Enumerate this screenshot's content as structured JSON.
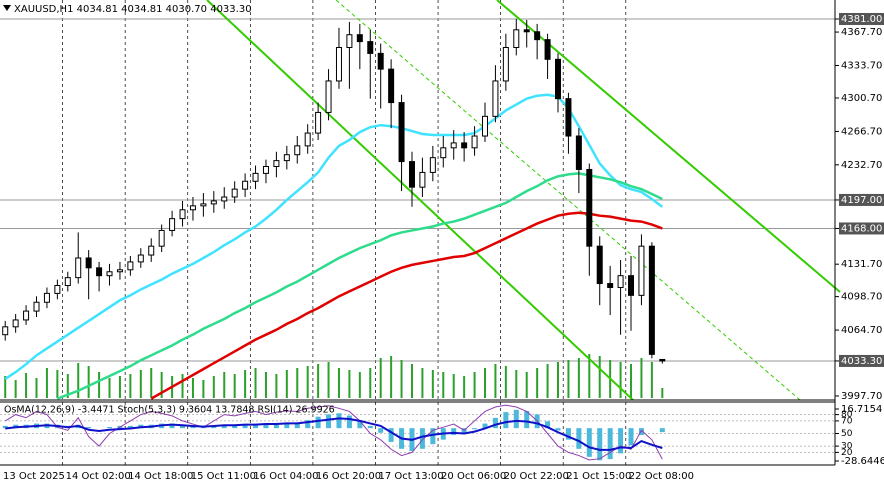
{
  "chart_data": [
    {
      "type": "candlestick",
      "title": "XAUUSD,H1  4034.81 4034.81 4030.70 4033.30",
      "categories": [
        "13 Oct 2025",
        null,
        null,
        null,
        null,
        null,
        "14 Oct 02:00",
        null,
        null,
        null,
        null,
        null,
        "14 Oct 18:00",
        null,
        null,
        null,
        null,
        null,
        "15 Oct 11:00",
        null,
        null,
        null,
        null,
        null,
        "16 Oct 04:00",
        null,
        null,
        null,
        null,
        null,
        "16 Oct 20:00",
        null,
        null,
        null,
        null,
        null,
        "17 Oct 13:00",
        null,
        null,
        null,
        null,
        null,
        "20 Oct 06:00",
        null,
        null,
        null,
        null,
        null,
        "20 Oct 22:00",
        null,
        null,
        null,
        null,
        null,
        "21 Oct 15:00",
        null,
        null,
        null,
        null,
        null,
        "22 Oct 08:00",
        null,
        null,
        null
      ],
      "open": [
        4060,
        4068,
        4075,
        4084,
        4093,
        4102,
        4110,
        4118,
        4138,
        4128,
        4120,
        4124,
        4126,
        4134,
        4141,
        4150,
        4166,
        4178,
        4187,
        4191,
        4193,
        4196,
        4200,
        4208,
        4216,
        4224,
        4231,
        4237,
        4243,
        4252,
        4265,
        4286,
        4318,
        4352,
        4365,
        4358,
        4346,
        4330,
        4296,
        4236,
        4210,
        4225,
        4240,
        4250,
        4255,
        4250,
        4262,
        4282,
        4318,
        4352,
        4370,
        4368,
        4360,
        4340,
        4300,
        4262,
        4228,
        4150,
        4112,
        4108,
        4120,
        4100,
        4150,
        4034.81
      ],
      "high": [
        4074,
        4081,
        4090,
        4099,
        4108,
        4116,
        4124,
        4164,
        4146,
        4134,
        4132,
        4134,
        4140,
        4148,
        4158,
        4172,
        4186,
        4196,
        4200,
        4204,
        4206,
        4210,
        4216,
        4224,
        4232,
        4238,
        4246,
        4252,
        4262,
        4274,
        4296,
        4330,
        4372,
        4378,
        4376,
        4370,
        4356,
        4340,
        4304,
        4246,
        4240,
        4252,
        4262,
        4268,
        4266,
        4272,
        4296,
        4334,
        4366,
        4381,
        4380,
        4376,
        4366,
        4346,
        4306,
        4270,
        4234,
        4160,
        4130,
        4136,
        4140,
        4162,
        4154,
        4034.81
      ],
      "low": [
        4054,
        4062,
        4070,
        4078,
        4087,
        4096,
        4104,
        4112,
        4096,
        4104,
        4110,
        4116,
        4120,
        4128,
        4134,
        4144,
        4160,
        4170,
        4176,
        4180,
        4184,
        4188,
        4194,
        4200,
        4208,
        4214,
        4220,
        4228,
        4234,
        4244,
        4258,
        4278,
        4310,
        4310,
        4330,
        4300,
        4290,
        4270,
        4206,
        4190,
        4200,
        4216,
        4230,
        4238,
        4236,
        4242,
        4256,
        4276,
        4308,
        4344,
        4352,
        4340,
        4320,
        4286,
        4244,
        4204,
        4120,
        4090,
        4080,
        4060,
        4064,
        4090,
        4036,
        4030.7
      ],
      "close": [
        4068,
        4075,
        4084,
        4093,
        4102,
        4110,
        4118,
        4138,
        4128,
        4120,
        4124,
        4126,
        4134,
        4141,
        4150,
        4166,
        4178,
        4187,
        4191,
        4193,
        4196,
        4200,
        4208,
        4216,
        4224,
        4231,
        4237,
        4243,
        4252,
        4265,
        4286,
        4318,
        4352,
        4365,
        4358,
        4346,
        4330,
        4296,
        4236,
        4210,
        4225,
        4240,
        4250,
        4255,
        4250,
        4262,
        4282,
        4318,
        4352,
        4370,
        4368,
        4360,
        4340,
        4300,
        4262,
        4228,
        4150,
        4112,
        4108,
        4120,
        4100,
        4150,
        4040,
        4033.3
      ],
      "candle_color": "#000000",
      "volume": [
        22,
        18,
        25,
        20,
        30,
        28,
        24,
        35,
        32,
        26,
        20,
        22,
        24,
        28,
        30,
        26,
        22,
        24,
        20,
        18,
        22,
        26,
        24,
        28,
        30,
        26,
        24,
        28,
        30,
        32,
        34,
        36,
        30,
        28,
        26,
        30,
        40,
        42,
        38,
        34,
        30,
        28,
        26,
        24,
        22,
        26,
        30,
        34,
        32,
        28,
        26,
        30,
        34,
        36,
        38,
        40,
        44,
        42,
        38,
        36,
        34,
        40,
        36,
        10
      ],
      "volume_color": "#2ca02c",
      "series": [
        {
          "color": "#3fe3ff",
          "values": [
            4015,
            4022,
            4030,
            4039,
            4046,
            4053,
            4060,
            4067,
            4074,
            4081,
            4088,
            4095,
            4100,
            4106,
            4111,
            4116,
            4122,
            4127,
            4132,
            4138,
            4144,
            4151,
            4157,
            4164,
            4170,
            4178,
            4187,
            4197,
            4206,
            4215,
            4225,
            4240,
            4252,
            4258,
            4266,
            4271,
            4273,
            4272,
            4270,
            4267,
            4264,
            4263,
            4263,
            4263,
            4263,
            4265,
            4272,
            4280,
            4288,
            4294,
            4300,
            4303,
            4304,
            4302,
            4290,
            4272,
            4253,
            4234,
            4222,
            4212,
            4208,
            4205,
            4198,
            4190
          ]
        },
        {
          "color": "#2fdc8c",
          "values": [
            null,
            null,
            null,
            null,
            null,
            3995,
            3999,
            4003,
            4008,
            4013,
            4018,
            4023,
            4028,
            4034,
            4039,
            4044,
            4049,
            4055,
            4060,
            4066,
            4071,
            4076,
            4082,
            4087,
            4093,
            4098,
            4103,
            4109,
            4114,
            4120,
            4126,
            4132,
            4138,
            4143,
            4148,
            4152,
            4156,
            4161,
            4164,
            4166,
            4168,
            4170,
            4173,
            4175,
            4178,
            4182,
            4186,
            4190,
            4194,
            4200,
            4206,
            4211,
            4217,
            4221,
            4223,
            4224,
            4222,
            4220,
            4218,
            4215,
            4211,
            4208,
            4203,
            4198
          ]
        },
        {
          "color": "#e00000",
          "values": [
            null,
            null,
            null,
            null,
            null,
            null,
            null,
            null,
            null,
            null,
            null,
            null,
            null,
            null,
            3995,
            4001,
            4007,
            4013,
            4019,
            4025,
            4031,
            4037,
            4043,
            4049,
            4055,
            4060,
            4065,
            4071,
            4076,
            4082,
            4087,
            4093,
            4099,
            4104,
            4109,
            4114,
            4119,
            4124,
            4128,
            4131,
            4133,
            4135,
            4137,
            4139,
            4140,
            4143,
            4148,
            4153,
            4158,
            4163,
            4168,
            4173,
            4177,
            4181,
            4183,
            4184,
            4183,
            4181,
            4180,
            4178,
            4176,
            4175,
            4172,
            4168
          ]
        }
      ],
      "ylim": [
        3993.6,
        4400.3
      ],
      "yticks": [
        {
          "value": 4381,
          "label": "4381.00"
        },
        {
          "value": 4367.7,
          "label": "4367.70"
        },
        {
          "value": 4333.7,
          "label": "4333.70"
        },
        {
          "value": 4300.7,
          "label": "4300.70"
        },
        {
          "value": 4266.7,
          "label": "4266.70"
        },
        {
          "value": 4232.7,
          "label": "4232.70"
        },
        {
          "value": 4197,
          "label": "4197.00"
        },
        {
          "value": 4168,
          "label": "4168.00"
        },
        {
          "value": 4131.7,
          "label": "4131.70"
        },
        {
          "value": 4098.7,
          "label": "4098.70"
        },
        {
          "value": 4064.7,
          "label": "4064.70"
        },
        {
          "value": 4033.3,
          "label": "4033.30"
        },
        {
          "value": 3997.7,
          "label": "3997.70"
        }
      ],
      "levels": [
        4381,
        4197,
        4168,
        4033.3
      ],
      "level_color": "#9a9a9a",
      "grid": true
    },
    {
      "type": "indicator",
      "title": "OsMA(12,26,9) -3.4471  Stoch(5,3,3) 9.3604 13.7848  RSI(14) 26.9926",
      "ylim": [
        -32.13,
        22.82
      ],
      "yticks": [
        16.7154,
        -28.6446
      ],
      "y2lim": [
        0,
        100
      ],
      "y2ticks": [
        80,
        70,
        50,
        30,
        20
      ],
      "series": [
        {
          "type": "bar",
          "color": "#4cb8dc",
          "values": [
            2,
            3,
            3,
            4,
            4,
            3,
            2,
            3,
            1,
            0,
            1,
            2,
            2,
            3,
            3,
            4,
            4,
            3,
            2,
            2,
            2,
            3,
            3,
            3,
            3,
            3,
            3,
            4,
            5,
            7,
            10,
            12,
            13,
            11,
            7,
            2,
            -4,
            -12,
            -18,
            -20,
            -18,
            -14,
            -10,
            -6,
            -4,
            -1,
            4,
            9,
            14,
            16,
            15,
            12,
            6,
            -2,
            -10,
            -18,
            -25,
            -28,
            -27,
            -22,
            -15,
            -6,
            0,
            -3.4471
          ]
        },
        {
          "type": "line",
          "axis": "y2",
          "color": "#8e3fb0",
          "values": [
            70,
            80,
            75,
            85,
            80,
            60,
            55,
            75,
            45,
            30,
            50,
            60,
            70,
            80,
            85,
            82,
            78,
            70,
            65,
            60,
            70,
            80,
            78,
            82,
            85,
            80,
            84,
            86,
            85,
            90,
            92,
            94,
            90,
            85,
            70,
            50,
            40,
            25,
            15,
            20,
            40,
            55,
            60,
            65,
            55,
            70,
            85,
            92,
            95,
            92,
            85,
            70,
            50,
            30,
            20,
            15,
            8,
            10,
            20,
            30,
            25,
            55,
            40,
            9.3604
          ]
        },
        {
          "type": "line",
          "axis": "y2",
          "color": "#1010c8",
          "values": [
            58,
            60,
            61,
            62,
            63,
            62,
            60,
            62,
            56,
            54,
            56,
            57,
            58,
            60,
            61,
            63,
            64,
            63,
            62,
            61,
            62,
            63,
            63,
            64,
            64,
            65,
            65,
            66,
            66,
            68,
            70,
            72,
            74,
            73,
            70,
            66,
            62,
            52,
            42,
            40,
            45,
            48,
            50,
            51,
            50,
            53,
            58,
            64,
            68,
            70,
            69,
            66,
            60,
            52,
            45,
            38,
            28,
            24,
            24,
            28,
            27,
            38,
            32,
            26.9926
          ]
        }
      ]
    }
  ]
}
